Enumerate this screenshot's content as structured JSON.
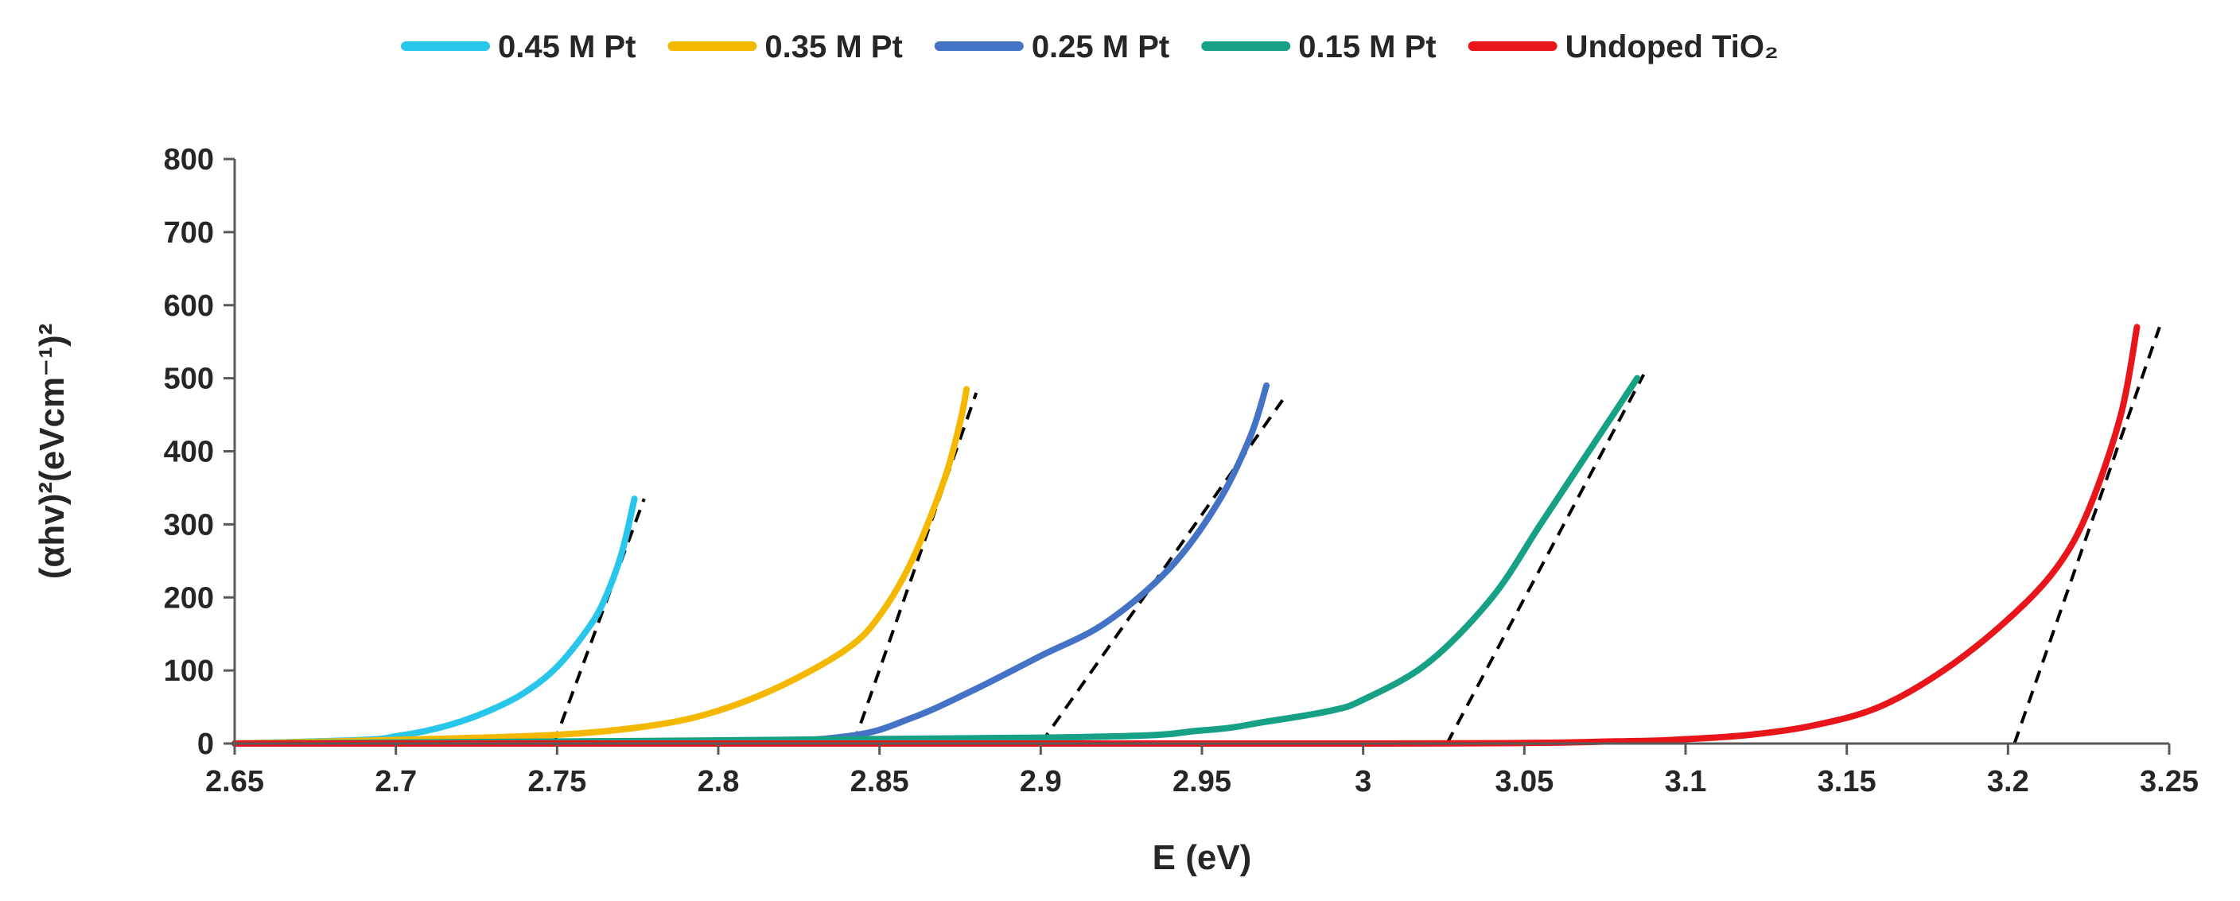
{
  "chart_data": {
    "type": "line",
    "title": "",
    "xlabel": "E (eV)",
    "ylabel": "(αhv)²(eVcm⁻¹)²",
    "xlim": [
      2.65,
      3.25
    ],
    "ylim": [
      0,
      800
    ],
    "xticks": [
      "2.65",
      "2.7",
      "2.75",
      "2.8",
      "2.85",
      "2.9",
      "2.95",
      "3",
      "3.05",
      "3.1",
      "3.15",
      "3.2",
      "3.25"
    ],
    "yticks": [
      "0",
      "100",
      "200",
      "300",
      "400",
      "500",
      "600",
      "700",
      "800"
    ],
    "legend_position": "top",
    "series": [
      {
        "name": "0.45 M Pt",
        "color": "#29C6EB",
        "x": [
          2.65,
          2.69,
          2.7,
          2.71,
          2.72,
          2.73,
          2.74,
          2.75,
          2.76,
          2.765,
          2.77,
          2.774
        ],
        "y": [
          0,
          5,
          10,
          18,
          30,
          47,
          70,
          105,
          160,
          200,
          260,
          335
        ]
      },
      {
        "name": "0.35 M Pt",
        "color": "#F5B800",
        "x": [
          2.65,
          2.7,
          2.75,
          2.78,
          2.8,
          2.82,
          2.84,
          2.85,
          2.86,
          2.87,
          2.875,
          2.877
        ],
        "y": [
          0,
          5,
          12,
          25,
          45,
          80,
          130,
          175,
          250,
          360,
          440,
          485
        ]
      },
      {
        "name": "0.25 M Pt",
        "color": "#4472C4",
        "x": [
          2.65,
          2.8,
          2.84,
          2.86,
          2.88,
          2.9,
          2.92,
          2.94,
          2.955,
          2.965,
          2.97
        ],
        "y": [
          0,
          3,
          10,
          35,
          75,
          120,
          165,
          240,
          330,
          420,
          490
        ]
      },
      {
        "name": "0.15 M Pt",
        "color": "#16A085",
        "x": [
          2.65,
          2.9,
          2.95,
          2.97,
          2.99,
          3.0,
          3.02,
          3.04,
          3.055,
          3.07,
          3.085
        ],
        "y": [
          0,
          8,
          18,
          30,
          45,
          60,
          110,
          200,
          300,
          400,
          500
        ]
      },
      {
        "name": "Undoped TiO₂",
        "color": "#E8161B",
        "x": [
          2.65,
          3.0,
          3.08,
          3.1,
          3.12,
          3.14,
          3.16,
          3.18,
          3.2,
          3.215,
          3.225,
          3.235,
          3.24
        ],
        "y": [
          0,
          0,
          3,
          6,
          12,
          25,
          50,
          100,
          170,
          240,
          320,
          450,
          570
        ]
      }
    ],
    "tangent_lines": [
      {
        "series": "0.45 M Pt",
        "x": [
          2.749,
          2.777
        ],
        "y": [
          0,
          335
        ]
      },
      {
        "series": "0.35 M Pt",
        "x": [
          2.842,
          2.88
        ],
        "y": [
          0,
          480
        ]
      },
      {
        "series": "0.25 M Pt",
        "x": [
          2.9,
          2.975
        ],
        "y": [
          0,
          470
        ]
      },
      {
        "series": "0.15 M Pt",
        "x": [
          3.026,
          3.087
        ],
        "y": [
          0,
          505
        ]
      },
      {
        "series": "Undoped TiO₂",
        "x": [
          3.202,
          3.247
        ],
        "y": [
          0,
          570
        ]
      }
    ]
  }
}
